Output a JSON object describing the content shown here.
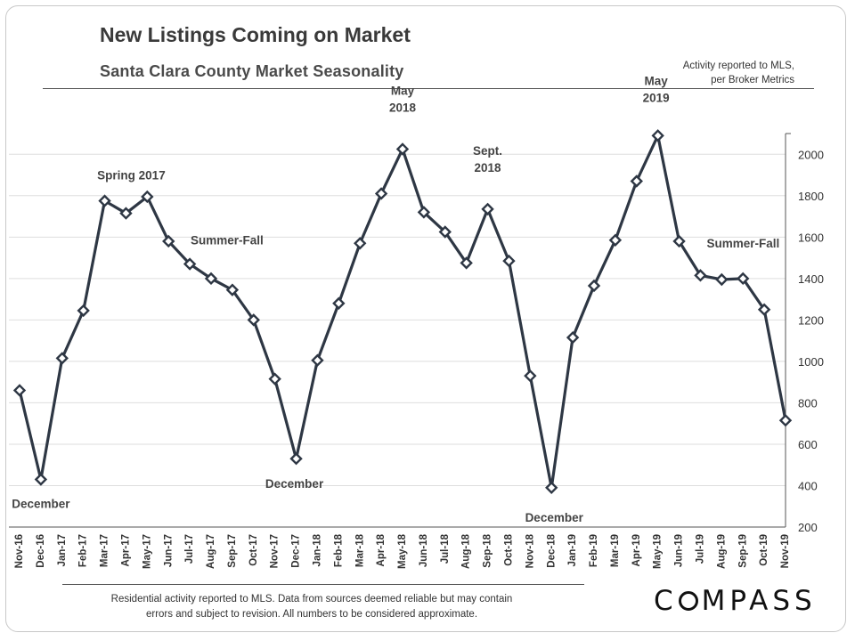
{
  "title": "New Listings Coming on Market",
  "subtitle": "Santa Clara County Market Seasonality",
  "source_note": [
    "Activity reported to MLS,",
    "per Broker Metrics"
  ],
  "disclaimer": [
    "Residential activity reported to MLS. Data from sources deemed reliable but may contain",
    "errors and subject to revision. All numbers to be considered approximate."
  ],
  "logo": {
    "letters_before": "C",
    "letters_after": "MPASS"
  },
  "colors": {
    "series": "#2e3744",
    "grid": "#dedede",
    "axis": "#555555",
    "label": "#333333",
    "annotation": "#444444"
  },
  "chart_data": {
    "type": "line",
    "categories": [
      "Nov-16",
      "Dec-16",
      "Jan-17",
      "Feb-17",
      "Mar-17",
      "Apr-17",
      "May-17",
      "Jun-17",
      "Jul-17",
      "Aug-17",
      "Sep-17",
      "Oct-17",
      "Nov-17",
      "Dec-17",
      "Jan-18",
      "Feb-18",
      "Mar-18",
      "Apr-18",
      "May-18",
      "Jun-18",
      "Jul-18",
      "Aug-18",
      "Sep-18",
      "Oct-18",
      "Nov-18",
      "Dec-18",
      "Jan-19",
      "Feb-19",
      "Mar-19",
      "Apr-19",
      "May-19",
      "Jun-19",
      "Jul-19",
      "Aug-19",
      "Sep-19",
      "Oct-19",
      "Nov-19"
    ],
    "series": [
      {
        "values": [
          860,
          430,
          1015,
          1245,
          1775,
          1715,
          1795,
          1580,
          1470,
          1400,
          1345,
          1200,
          915,
          530,
          1005,
          1280,
          1570,
          1810,
          2025,
          1720,
          1625,
          1475,
          1735,
          1485,
          930,
          390,
          1115,
          1365,
          1585,
          1870,
          2090,
          1580,
          1415,
          1395,
          1400,
          1250,
          715
        ]
      }
    ],
    "y_axis": {
      "min": 200,
      "max": 2100,
      "ticks": [
        200,
        400,
        600,
        800,
        1000,
        1200,
        1400,
        1600,
        1800,
        2000
      ],
      "position": "right"
    },
    "grid": true,
    "marker": "diamond",
    "annotations": [
      {
        "lines": [
          "December"
        ],
        "category": "Dec-16"
      },
      {
        "lines": [
          "Spring 2017"
        ],
        "category": "Apr-17"
      },
      {
        "lines": [
          "Summer-Fall"
        ],
        "category": "Sep-17"
      },
      {
        "lines": [
          "December"
        ],
        "category": "Dec-17"
      },
      {
        "lines": [
          "May",
          "2018"
        ],
        "category": "May-18"
      },
      {
        "lines": [
          "Sept.",
          "2018"
        ],
        "category": "Sep-18"
      },
      {
        "lines": [
          "December"
        ],
        "category": "Dec-18"
      },
      {
        "lines": [
          "May",
          "2019"
        ],
        "category": "May-19"
      },
      {
        "lines": [
          "Summer-Fall"
        ],
        "category": "Aug-19"
      }
    ]
  }
}
